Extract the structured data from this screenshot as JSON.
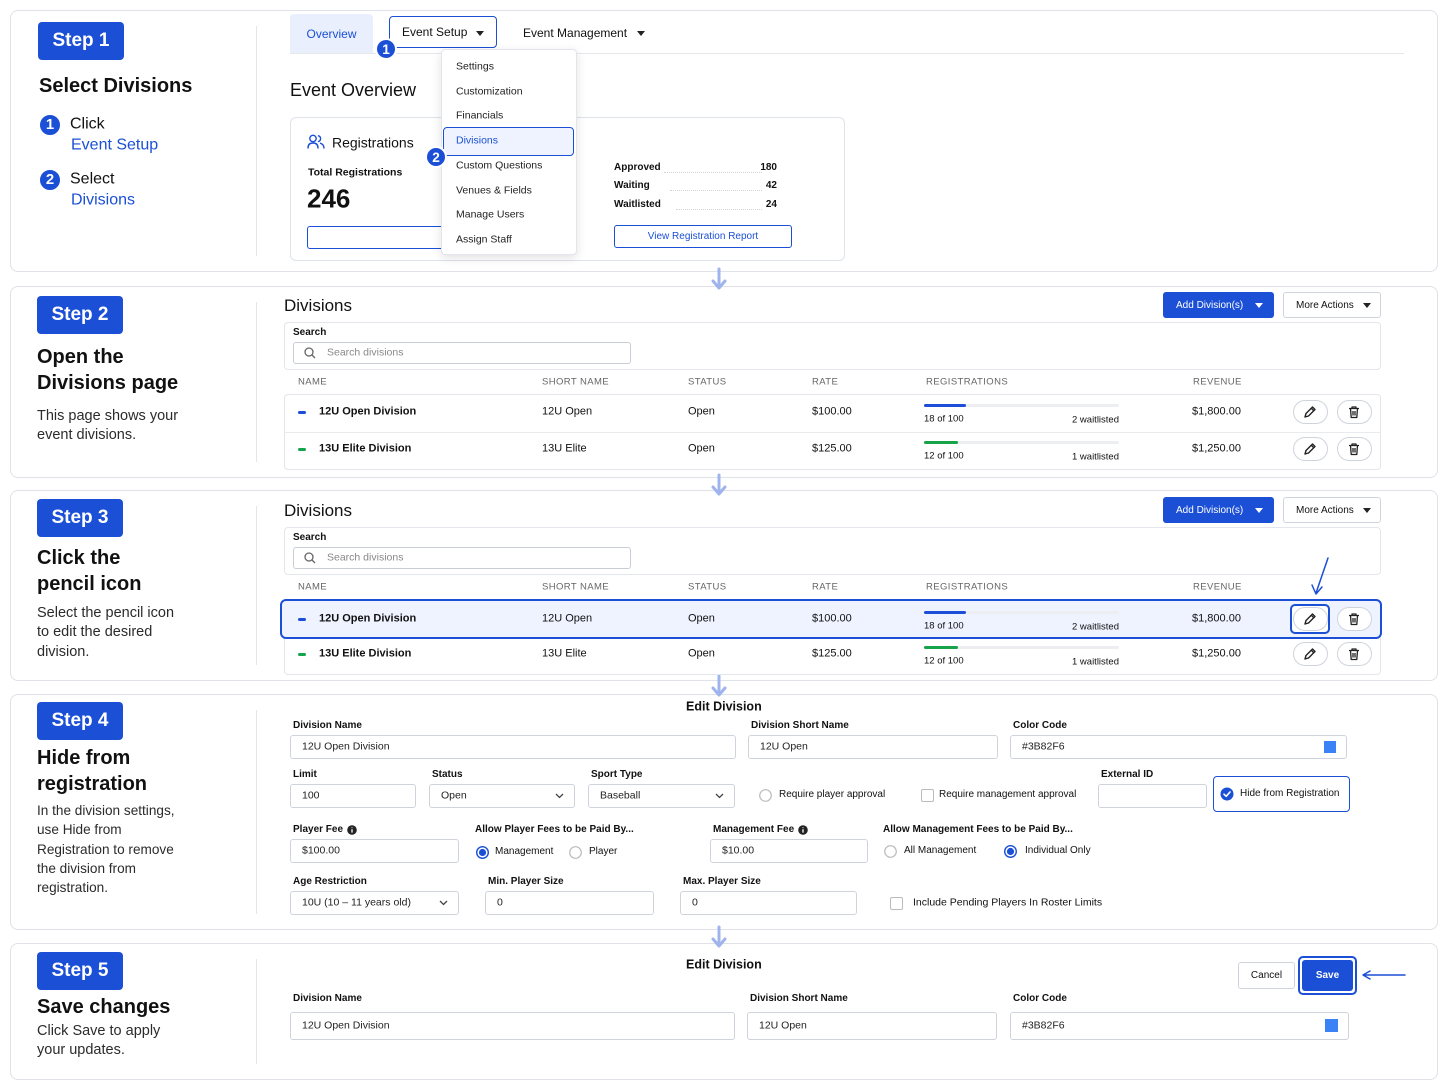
{
  "steps": [
    {
      "badge": "Step 1",
      "title": "Select Divisions",
      "items": [
        {
          "number": "1",
          "action": "Click",
          "target": "Event Setup"
        },
        {
          "number": "2",
          "action": "Select",
          "target": "Divisions"
        }
      ]
    },
    {
      "badge": "Step 2",
      "title": "Open the Divisions page",
      "description": "This page shows your event divisions."
    },
    {
      "badge": "Step 3",
      "title": "Click the pencil icon",
      "description": "Select the pencil icon to edit the desired division."
    },
    {
      "badge": "Step 4",
      "title": "Hide from registration",
      "description": "In the division settings, use Hide from Registration to remove the division from registration."
    },
    {
      "badge": "Step 5",
      "title": "Save changes",
      "description": "Click Save to apply your updates."
    }
  ],
  "event_overview": {
    "tabs": [
      "Overview",
      "Event Setup",
      "Event Management"
    ],
    "markers": [
      "1",
      "2"
    ],
    "heading": "Event Overview",
    "card": {
      "title": "Registrations",
      "total_label": "Total Registrations",
      "total": "246",
      "stats": [
        {
          "label": "Approved",
          "value": "180"
        },
        {
          "label": "Waiting",
          "value": "42"
        },
        {
          "label": "Waitlisted",
          "value": "24"
        }
      ],
      "button": "View Registration Report"
    },
    "menu": [
      "Settings",
      "Customization",
      "Financials",
      "Divisions",
      "Custom Questions",
      "Venues & Fields",
      "Manage Users",
      "Assign Staff"
    ]
  },
  "divisions_pages": [
    {
      "title": "Divisions",
      "add_button": "Add Division(s)",
      "more_button": "More Actions",
      "search_label": "Search",
      "search_placeholder": "Search divisions",
      "columns": [
        "NAME",
        "SHORT NAME",
        "STATUS",
        "RATE",
        "REGISTRATIONS",
        "REVENUE"
      ],
      "rows": [
        {
          "name": "12U Open Division",
          "short_name": "12U Open",
          "status": "Open",
          "rate": "$100.00",
          "registrations": "18 of 100",
          "waitlisted": "2 waitlisted",
          "revenue": "$1,800.00",
          "color": "#1d4ed8"
        },
        {
          "name": "13U Elite Division",
          "short_name": "13U Elite",
          "status": "Open",
          "rate": "$125.00",
          "registrations": "12 of 100",
          "waitlisted": "1 waitlisted",
          "revenue": "$1,250.00",
          "color": "#16a34a"
        }
      ]
    },
    {
      "title": "Divisions",
      "add_button": "Add Division(s)",
      "more_button": "More Actions",
      "search_label": "Search",
      "search_placeholder": "Search divisions",
      "columns": [
        "NAME",
        "SHORT NAME",
        "STATUS",
        "RATE",
        "REGISTRATIONS",
        "REVENUE"
      ],
      "rows": [
        {
          "name": "12U Open Division",
          "short_name": "12U Open",
          "status": "Open",
          "rate": "$100.00",
          "registrations": "18 of 100",
          "waitlisted": "2 waitlisted",
          "revenue": "$1,800.00",
          "color": "#1d4ed8"
        },
        {
          "name": "13U Elite Division",
          "short_name": "13U Elite",
          "status": "Open",
          "rate": "$125.00",
          "registrations": "12 of 100",
          "waitlisted": "1 waitlisted",
          "revenue": "$1,250.00",
          "color": "#16a34a"
        }
      ]
    }
  ],
  "edit_form": {
    "title": "Edit Division",
    "fields": [
      {
        "label": "Division Name",
        "value": "12U Open Division"
      },
      {
        "label": "Division Short Name",
        "value": "12U Open"
      },
      {
        "label": "Color Code",
        "value": "#3B82F6"
      },
      {
        "label": "Limit",
        "value": "100"
      },
      {
        "label": "Status",
        "value": "Open"
      },
      {
        "label": "Sport Type",
        "value": "Baseball"
      },
      {
        "label": "External ID"
      },
      {
        "label": "Player Fee",
        "value": "$100.00"
      },
      {
        "label": "Management Fee",
        "value": "$10.00"
      },
      {
        "label": "Age Restriction",
        "value": "10U (10 – 11 years old)"
      },
      {
        "label": "Min. Player Size",
        "value": "0"
      },
      {
        "label": "Max. Player Size",
        "value": "0"
      }
    ],
    "toggles": [
      {
        "label": "Require player approval",
        "checked": false
      },
      {
        "label": "Require management approval",
        "checked": false
      },
      {
        "label": "Hide from Registration",
        "checked": true
      },
      {
        "label": "Include Pending Players In Roster Limits",
        "checked": false
      }
    ],
    "radio_groups": [
      {
        "label": "Allow Player Fees to be Paid By...",
        "options": [
          {
            "label": "Management",
            "checked": true
          },
          {
            "label": "Player",
            "checked": false
          }
        ]
      },
      {
        "label": "Allow Management Fees to be Paid By...",
        "options": [
          {
            "label": "All Management",
            "checked": false
          },
          {
            "label": "Individual Only",
            "checked": true
          }
        ]
      }
    ]
  },
  "save_form": {
    "title": "Edit Division",
    "cancel": "Cancel",
    "save": "Save",
    "fields": [
      {
        "label": "Division Name",
        "value": "12U Open Division"
      },
      {
        "label": "Division Short Name",
        "value": "12U Open"
      },
      {
        "label": "Color Code",
        "value": "#3B82F6"
      }
    ]
  }
}
